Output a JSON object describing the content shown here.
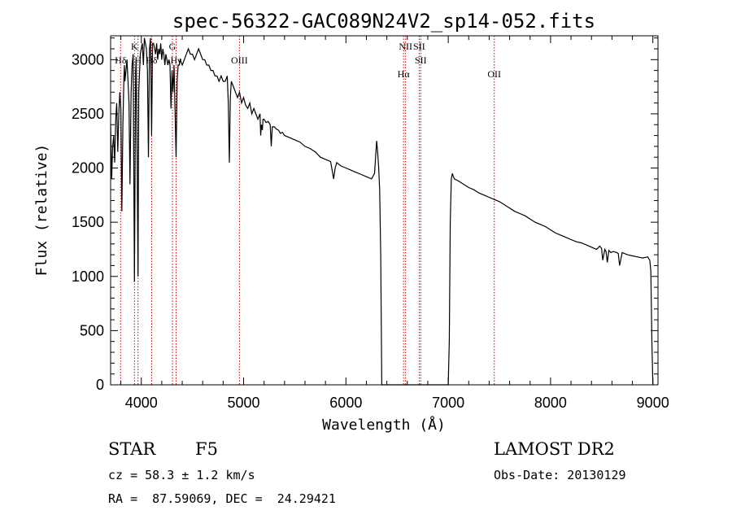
{
  "chart_data": {
    "type": "line",
    "title": "spec-56322-GAC089N24V2_sp14-052.fits",
    "xlabel": "Wavelength (Å)",
    "ylabel": "Flux (relative)",
    "xlim": [
      3700,
      9050
    ],
    "ylim": [
      0,
      3220
    ],
    "xticks": [
      4000,
      5000,
      6000,
      7000,
      8000,
      9000
    ],
    "yticks": [
      0,
      500,
      1000,
      1500,
      2000,
      2500,
      3000
    ],
    "grid": false,
    "series": [
      {
        "x": [
          3700,
          3710,
          3720,
          3730,
          3740,
          3750,
          3760,
          3770,
          3780,
          3790,
          3800,
          3810,
          3820,
          3830,
          3835,
          3840,
          3850,
          3860,
          3870,
          3880,
          3889,
          3900,
          3910,
          3920,
          3933,
          3945,
          3950,
          3960,
          3968,
          3975,
          3990,
          4000,
          4010,
          4020,
          4030,
          4040,
          4050,
          4060,
          4070,
          4080,
          4090,
          4101,
          4110,
          4120,
          4130,
          4140,
          4150,
          4160,
          4170,
          4180,
          4190,
          4200,
          4210,
          4220,
          4230,
          4240,
          4250,
          4260,
          4270,
          4280,
          4290,
          4300,
          4310,
          4320,
          4330,
          4340,
          4350,
          4360,
          4370,
          4380,
          4400,
          4420,
          4440,
          4460,
          4480,
          4500,
          4520,
          4540,
          4560,
          4580,
          4600,
          4620,
          4640,
          4660,
          4680,
          4700,
          4720,
          4740,
          4760,
          4780,
          4800,
          4820,
          4840,
          4850,
          4861,
          4870,
          4880,
          4900,
          4920,
          4940,
          4960,
          4980,
          5000,
          5020,
          5040,
          5060,
          5080,
          5100,
          5120,
          5140,
          5160,
          5167,
          5175,
          5183,
          5190,
          5200,
          5220,
          5240,
          5260,
          5270,
          5280,
          5300,
          5320,
          5340,
          5360,
          5380,
          5400,
          5450,
          5500,
          5550,
          5600,
          5650,
          5700,
          5750,
          5800,
          5850,
          5880,
          5895,
          5910,
          5950,
          6000,
          6050,
          6100,
          6150,
          6200,
          6250,
          6280,
          6300,
          6310,
          6320,
          6330,
          6340,
          6350,
          6360,
          6380,
          6400,
          6500,
          6600,
          6700,
          6800,
          6900,
          7000,
          7010,
          7020,
          7030,
          7040,
          7050,
          7060,
          7100,
          7150,
          7200,
          7250,
          7300,
          7350,
          7400,
          7450,
          7500,
          7550,
          7600,
          7650,
          7700,
          7750,
          7800,
          7850,
          7900,
          7950,
          8000,
          8050,
          8100,
          8150,
          8200,
          8250,
          8300,
          8350,
          8400,
          8450,
          8480,
          8498,
          8510,
          8530,
          8542,
          8555,
          8570,
          8590,
          8610,
          8650,
          8662,
          8675,
          8700,
          8750,
          8800,
          8850,
          8900,
          8950,
          8970,
          8980,
          8990,
          9000
        ],
        "y": [
          2400,
          1900,
          2200,
          2300,
          2050,
          2450,
          2600,
          2150,
          2500,
          2700,
          2550,
          1600,
          2400,
          2850,
          2950,
          2800,
          2900,
          3000,
          2800,
          2600,
          1850,
          2700,
          2950,
          3050,
          950,
          2900,
          3000,
          2000,
          1000,
          2700,
          3050,
          3100,
          3150,
          2950,
          3200,
          3150,
          3100,
          2900,
          2100,
          3100,
          3200,
          2300,
          3150,
          3150,
          3100,
          3050,
          3150,
          3000,
          3100,
          3050,
          3150,
          3000,
          3100,
          3050,
          2950,
          3050,
          3000,
          2950,
          3000,
          2950,
          2550,
          2900,
          2700,
          2950,
          2500,
          2100,
          2800,
          2950,
          2950,
          3000,
          2950,
          3000,
          3050,
          3100,
          3050,
          3050,
          3000,
          3050,
          3100,
          3050,
          3000,
          3000,
          2950,
          2950,
          2900,
          2900,
          2850,
          2850,
          2800,
          2850,
          2800,
          2800,
          2850,
          2600,
          2050,
          2650,
          2800,
          2750,
          2700,
          2650,
          2700,
          2600,
          2650,
          2580,
          2550,
          2600,
          2500,
          2550,
          2500,
          2450,
          2500,
          2300,
          2400,
          2350,
          2450,
          2450,
          2420,
          2430,
          2400,
          2200,
          2380,
          2380,
          2360,
          2350,
          2320,
          2330,
          2300,
          2280,
          2260,
          2240,
          2200,
          2180,
          2150,
          2100,
          2080,
          2060,
          1900,
          2000,
          2050,
          2020,
          2000,
          1980,
          1960,
          1940,
          1920,
          1900,
          1950,
          2250,
          2150,
          2000,
          1800,
          1200,
          0,
          0,
          0,
          0,
          0,
          0,
          0,
          0,
          0,
          0,
          400,
          1500,
          1900,
          1950,
          1920,
          1900,
          1880,
          1850,
          1820,
          1800,
          1770,
          1750,
          1730,
          1710,
          1690,
          1660,
          1630,
          1600,
          1580,
          1560,
          1530,
          1500,
          1480,
          1460,
          1430,
          1400,
          1380,
          1360,
          1340,
          1320,
          1310,
          1290,
          1270,
          1250,
          1280,
          1260,
          1150,
          1250,
          1230,
          1130,
          1240,
          1220,
          1230,
          1220,
          1210,
          1100,
          1220,
          1200,
          1190,
          1180,
          1170,
          1180,
          1150,
          1050,
          400,
          0
        ]
      }
    ],
    "spectral_lines": [
      {
        "label": "Hδ",
        "wavelength": 3798,
        "label_row": "lower"
      },
      {
        "label": "K",
        "wavelength": 3933,
        "label_row": "upper"
      },
      {
        "label": "H",
        "wavelength": 3968,
        "label_row": "lower"
      },
      {
        "label": "Hδ",
        "wavelength": 4101,
        "label_row": "lower"
      },
      {
        "label": "G",
        "wavelength": 4304,
        "label_row": "upper"
      },
      {
        "label": "Hγ",
        "wavelength": 4340,
        "label_row": "lower"
      },
      {
        "label": "OIII",
        "wavelength": 4959,
        "label_row": "lower"
      },
      {
        "label": "Hα",
        "wavelength": 6563,
        "label_row": "lowest"
      },
      {
        "label": "NII",
        "wavelength": 6583,
        "label_row": "upper"
      },
      {
        "label": "SII",
        "wavelength": 6716,
        "label_row": "upper"
      },
      {
        "label": "SII",
        "wavelength": 6731,
        "label_row": "lower"
      },
      {
        "label": "OII",
        "wavelength": 7450,
        "label_row": "lowest"
      }
    ],
    "line_color": "#000000",
    "marker_color": "#cc0000"
  },
  "info": {
    "object_class": "STAR",
    "subclass": "F5",
    "survey": "LAMOST DR2",
    "velocity": "cz = 58.3 ± 1.2 km/s",
    "obs_date": "Obs-Date: 20130129",
    "coords": "RA =  87.59069, DEC =  24.29421"
  }
}
